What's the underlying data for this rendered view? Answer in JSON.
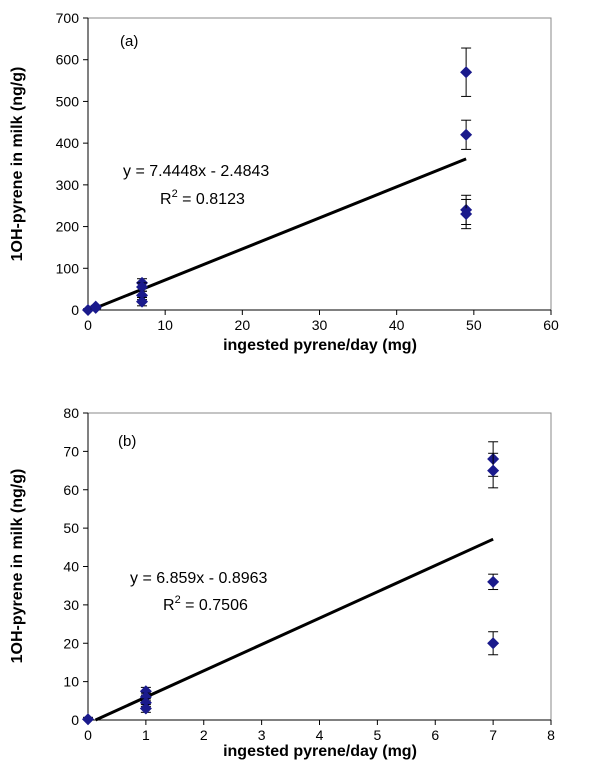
{
  "chart_data": [
    {
      "type": "scatter",
      "panel_label": "(a)",
      "xlabel": "ingested pyrene/day (mg)",
      "ylabel": "1OH-pyrene in milk (ng/g)",
      "xlim": [
        0,
        60
      ],
      "ylim": [
        0,
        700
      ],
      "xticks": [
        "0",
        "10",
        "20",
        "30",
        "40",
        "50",
        "60"
      ],
      "yticks": [
        "0",
        "100",
        "200",
        "300",
        "400",
        "500",
        "600",
        "700"
      ],
      "grid": false,
      "points": [
        {
          "x": 0,
          "y": 0,
          "err": 3
        },
        {
          "x": 1,
          "y": 5,
          "err": 3
        },
        {
          "x": 1,
          "y": 8,
          "err": 3
        },
        {
          "x": 7,
          "y": 65,
          "err": 10
        },
        {
          "x": 7,
          "y": 55,
          "err": 10
        },
        {
          "x": 7,
          "y": 35,
          "err": 10
        },
        {
          "x": 7,
          "y": 20,
          "err": 10
        },
        {
          "x": 49,
          "y": 570,
          "err": 58
        },
        {
          "x": 49,
          "y": 420,
          "err": 35
        },
        {
          "x": 49,
          "y": 240,
          "err": 35
        },
        {
          "x": 49,
          "y": 230,
          "err": 35
        }
      ],
      "trendline": {
        "slope": 7.4448,
        "intercept": -2.4843,
        "x_range": [
          0,
          49
        ]
      },
      "equation_text": "y = 7.4448x - 2.4843",
      "r2_prefix": "R",
      "r2_value_text": " = 0.8123"
    },
    {
      "type": "scatter",
      "panel_label": "(b)",
      "xlabel": "ingested pyrene/day (mg)",
      "ylabel": "1OH-pyrene in milk (ng/g)",
      "xlim": [
        0,
        8
      ],
      "ylim": [
        0,
        80
      ],
      "xticks": [
        "0",
        "1",
        "2",
        "3",
        "4",
        "5",
        "6",
        "7",
        "8"
      ],
      "yticks": [
        "0",
        "10",
        "20",
        "30",
        "40",
        "50",
        "60",
        "70",
        "80"
      ],
      "grid": false,
      "points": [
        {
          "x": 0,
          "y": 0.2,
          "err": 0.5
        },
        {
          "x": 1,
          "y": 7.5,
          "err": 1
        },
        {
          "x": 1,
          "y": 6,
          "err": 1
        },
        {
          "x": 1,
          "y": 4.5,
          "err": 1
        },
        {
          "x": 1,
          "y": 3,
          "err": 1
        },
        {
          "x": 7,
          "y": 68,
          "err": 4.5
        },
        {
          "x": 7,
          "y": 65,
          "err": 4.5
        },
        {
          "x": 7,
          "y": 36,
          "err": 2
        },
        {
          "x": 7,
          "y": 20,
          "err": 3
        }
      ],
      "trendline": {
        "slope": 6.859,
        "intercept": -0.8963,
        "x_range": [
          0,
          7
        ]
      },
      "equation_text": "y = 6.859x - 0.8963",
      "r2_prefix": "R",
      "r2_value_text": " = 0.7506"
    }
  ],
  "colors": {
    "marker": "#1a1a8c",
    "trendline": "#000000",
    "axis": "#000000"
  }
}
